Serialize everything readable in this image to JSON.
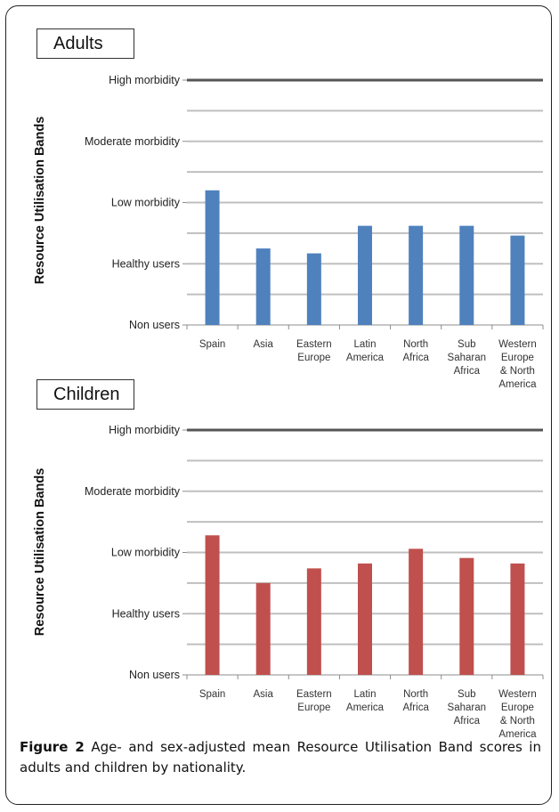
{
  "figure": {
    "number": "Figure 2",
    "caption": "Age- and sex-adjusted mean Resource Utilisation Band scores in adults and children by nationality."
  },
  "colors": {
    "adults_bar": "#4f81bd",
    "children_bar": "#c0504d",
    "grid": "#bfbfbf",
    "top_line": "#555555"
  },
  "chart_data": [
    {
      "type": "bar",
      "panel_label": "Adults",
      "ylabel": "Resource Utilisation Bands",
      "band_labels": [
        "Non users",
        "Healthy users",
        "Low morbidity",
        "Moderate morbidity",
        "High morbidity"
      ],
      "band_values": [
        0,
        1,
        2,
        3,
        4
      ],
      "ylim": [
        0,
        4
      ],
      "grid": true,
      "categories": [
        "Spain",
        "Asia",
        "Eastern Europe",
        "Latin America",
        "North Africa",
        "Sub Saharan Africa",
        "Western Europe & North America"
      ],
      "category_lines": [
        [
          "Spain"
        ],
        [
          "Asia"
        ],
        [
          "Eastern",
          "Europe"
        ],
        [
          "Latin",
          "America"
        ],
        [
          "North",
          "Africa"
        ],
        [
          "Sub",
          "Saharan",
          "Africa"
        ],
        [
          "Western",
          "Europe",
          "& North",
          "America"
        ]
      ],
      "values": [
        2.2,
        1.25,
        1.17,
        1.62,
        1.62,
        1.62,
        1.46
      ]
    },
    {
      "type": "bar",
      "panel_label": "Children",
      "ylabel": "Resource Utilisation Bands",
      "band_labels": [
        "Non users",
        "Healthy users",
        "Low morbidity",
        "Moderate morbidity",
        "High morbidity"
      ],
      "band_values": [
        0,
        1,
        2,
        3,
        4
      ],
      "ylim": [
        0,
        4
      ],
      "grid": true,
      "categories": [
        "Spain",
        "Asia",
        "Eastern Europe",
        "Latin America",
        "North Africa",
        "Sub Saharan Africa",
        "Western Europe & North America"
      ],
      "category_lines": [
        [
          "Spain"
        ],
        [
          "Asia"
        ],
        [
          "Eastern",
          "Europe"
        ],
        [
          "Latin",
          "America"
        ],
        [
          "North",
          "Africa"
        ],
        [
          "Sub",
          "Saharan",
          "Africa"
        ],
        [
          "Western",
          "Europe",
          "& North",
          "America"
        ]
      ],
      "values": [
        2.28,
        1.5,
        1.74,
        1.82,
        2.06,
        1.91,
        1.82
      ]
    }
  ]
}
